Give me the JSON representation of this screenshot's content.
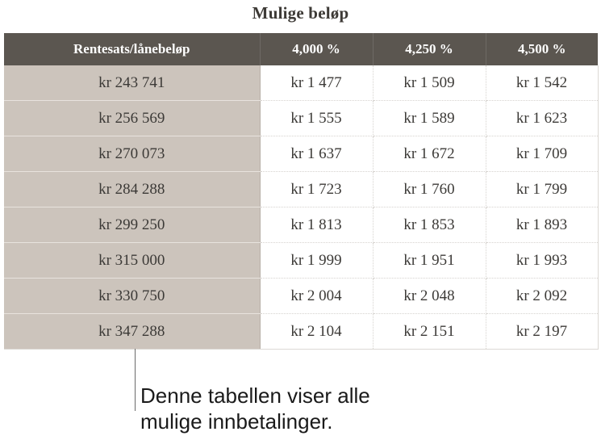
{
  "title": "Mulige beløp",
  "table": {
    "header": [
      "Rentesats/lånebeløp",
      "4,000 %",
      "4,250 %",
      "4,500 %"
    ],
    "rows": [
      {
        "amount": "kr 243 741",
        "payments": [
          "kr 1 477",
          "kr 1 509",
          "kr 1 542"
        ]
      },
      {
        "amount": "kr 256 569",
        "payments": [
          "kr 1 555",
          "kr 1 589",
          "kr 1 623"
        ]
      },
      {
        "amount": "kr 270 073",
        "payments": [
          "kr 1 637",
          "kr 1 672",
          "kr 1 709"
        ]
      },
      {
        "amount": "kr 284 288",
        "payments": [
          "kr 1 723",
          "kr 1 760",
          "kr 1 799"
        ]
      },
      {
        "amount": "kr 299 250",
        "payments": [
          "kr 1 813",
          "kr 1 853",
          "kr 1 893"
        ]
      },
      {
        "amount": "kr 315 000",
        "payments": [
          "kr 1 999",
          "kr 1 951",
          "kr 1 993"
        ]
      },
      {
        "amount": "kr 330 750",
        "payments": [
          "kr 2 004",
          "kr 2 048",
          "kr 2 092"
        ]
      },
      {
        "amount": "kr 347 288",
        "payments": [
          "kr 2 104",
          "kr 2 151",
          "kr 2 197"
        ]
      }
    ]
  },
  "callout": {
    "line1": "Denne tabellen viser alle",
    "line2": "mulige innbetalinger."
  },
  "colors": {
    "header_bg": "#5b5650",
    "amount_column_bg": "#ccc4bc"
  }
}
